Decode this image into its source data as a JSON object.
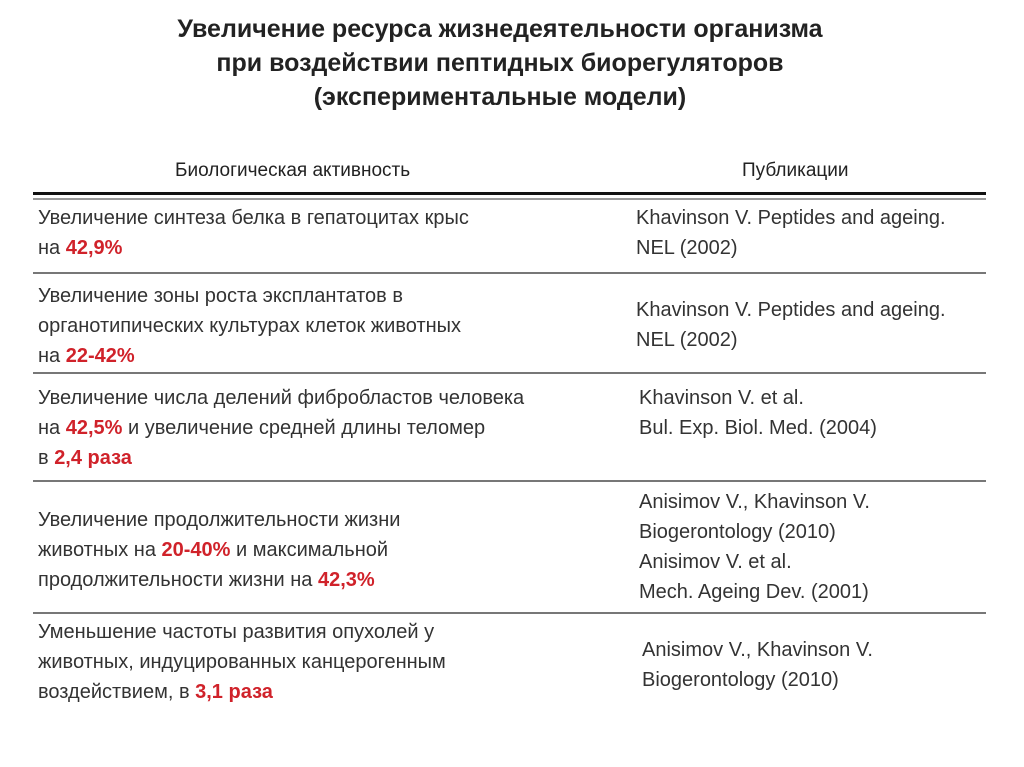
{
  "title": {
    "lines": [
      "Увеличение ресурса жизнедеятельности организма",
      "при воздействии пептидных биорегуляторов",
      "(экспериментальные модели)"
    ]
  },
  "table": {
    "headers": {
      "activity": "Биологическая активность",
      "publications": "Публикации"
    },
    "highlight_color": "#d0222a",
    "rows": [
      {
        "activity": [
          [
            {
              "t": "Увеличение синтеза белка в гепатоцитах крыс"
            }
          ],
          [
            {
              "t": "на "
            },
            {
              "t": "42,9%",
              "hl": true
            }
          ]
        ],
        "publications": [
          "Khavinson V. Peptides and ageing.",
          "NEL (2002)"
        ]
      },
      {
        "activity": [
          [
            {
              "t": "Увеличение зоны роста эксплантатов в"
            }
          ],
          [
            {
              "t": "органотипических культурах клеток животных"
            }
          ],
          [
            {
              "t": "на "
            },
            {
              "t": "22-42%",
              "hl": true
            }
          ]
        ],
        "publications": [
          "Khavinson V. Peptides and ageing.",
          "NEL (2002)"
        ]
      },
      {
        "activity": [
          [
            {
              "t": "Увеличение числа делений фибробластов человека"
            }
          ],
          [
            {
              "t": "на "
            },
            {
              "t": "42,5%",
              "hl": true
            },
            {
              "t": " и увеличение средней длины теломер"
            }
          ],
          [
            {
              "t": "в "
            },
            {
              "t": "2,4 раза",
              "hl": true
            }
          ]
        ],
        "publications": [
          "Khavinson V. et al.",
          "Bul. Exp. Biol. Med. (2004)"
        ]
      },
      {
        "activity": [
          [
            {
              "t": "Увеличение продолжительности жизни"
            }
          ],
          [
            {
              "t": "животных на "
            },
            {
              "t": "20-40%",
              "hl": true
            },
            {
              "t": " и максимальной"
            }
          ],
          [
            {
              "t": "продолжительности жизни на "
            },
            {
              "t": "42,3%",
              "hl": true
            }
          ]
        ],
        "publications": [
          "Anisimov V., Khavinson V.",
          "Biogerontology (2010)",
          "Anisimov V. et al.",
          "Mech. Ageing Dev. (2001)"
        ]
      },
      {
        "activity": [
          [
            {
              "t": "Уменьшение частоты развития опухолей у"
            }
          ],
          [
            {
              "t": "животных, индуцированных канцерогенным"
            }
          ],
          [
            {
              "t": "воздействием, в "
            },
            {
              "t": "3,1 раза",
              "hl": true
            }
          ]
        ],
        "publications": [
          "Anisimov V., Khavinson V.",
          "Biogerontology (2010)"
        ]
      }
    ]
  }
}
